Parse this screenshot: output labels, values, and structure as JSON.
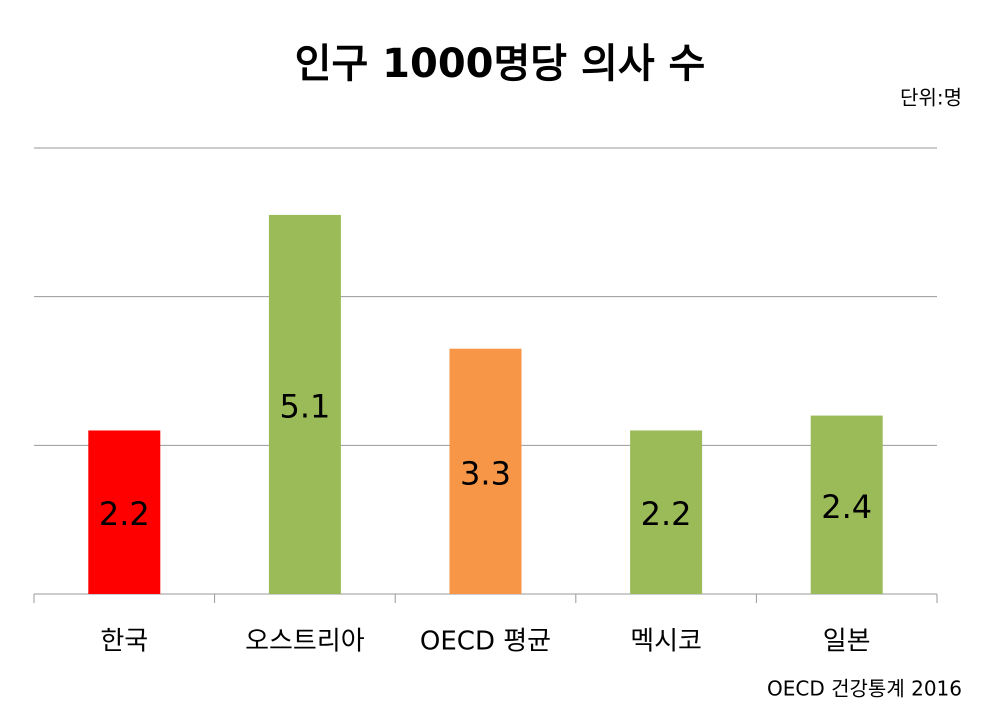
{
  "chart_data": {
    "type": "bar",
    "title": "인구 1000명당 의사 수",
    "unit_note": "단위:명",
    "source": "OECD 건강통계 2016",
    "categories": [
      "한국",
      "오스트리아",
      "OECD 평균",
      "멕시코",
      "일본"
    ],
    "values": [
      2.2,
      5.1,
      3.3,
      2.2,
      2.4
    ],
    "colors": [
      "#ff0000",
      "#9bbb59",
      "#f79646",
      "#9bbb59",
      "#9bbb59"
    ],
    "ylim": [
      0,
      6
    ],
    "yticks": [
      0,
      2,
      4,
      6
    ],
    "grid": true
  }
}
